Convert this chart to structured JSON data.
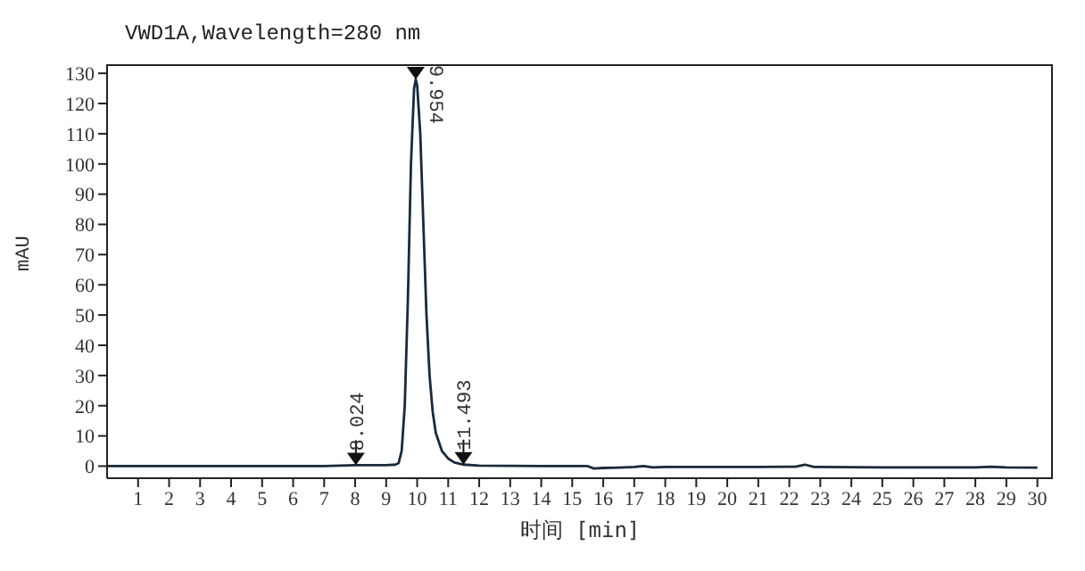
{
  "chart_data": {
    "type": "line",
    "title": "VWD1A,Wavelength=280 nm",
    "xlabel": "时间 [min]",
    "ylabel": "mAU",
    "x": [
      0,
      1,
      2,
      3,
      4,
      5,
      6,
      7,
      8,
      8.5,
      9,
      9.3,
      9.4,
      9.5,
      9.6,
      9.7,
      9.8,
      9.9,
      9.954,
      10,
      10.1,
      10.2,
      10.3,
      10.4,
      10.5,
      10.6,
      10.8,
      11,
      11.2,
      11.5,
      12,
      13,
      14,
      15,
      15.5,
      15.7,
      16,
      16.5,
      17,
      17.3,
      17.6,
      18,
      19,
      20,
      21,
      22,
      22.2,
      22.5,
      22.8,
      23,
      25,
      28,
      28.5,
      29,
      30
    ],
    "series": [
      {
        "color": "#1a2a3a",
        "values": [
          0,
          0,
          0,
          0,
          0,
          0,
          0,
          0,
          0.3,
          0.3,
          0.3,
          0.5,
          1,
          5,
          20,
          55,
          100,
          125,
          128,
          126,
          110,
          80,
          50,
          30,
          18,
          11,
          5,
          2.5,
          1.2,
          0.5,
          0.2,
          0.1,
          0,
          0,
          0,
          -0.8,
          -0.6,
          -0.5,
          -0.3,
          0,
          -0.4,
          -0.3,
          -0.3,
          -0.3,
          -0.3,
          -0.2,
          -0.2,
          0.5,
          -0.3,
          -0.3,
          -0.4,
          -0.4,
          -0.2,
          -0.4,
          -0.5
        ]
      }
    ],
    "xlim": [
      0,
      30.5
    ],
    "xticks": [
      1,
      2,
      3,
      4,
      5,
      6,
      7,
      8,
      9,
      10,
      11,
      12,
      13,
      14,
      15,
      16,
      17,
      18,
      19,
      20,
      21,
      22,
      23,
      24,
      25,
      26,
      27,
      28,
      29,
      30
    ],
    "ylim": [
      -4,
      133
    ],
    "yticks": [
      0,
      10,
      20,
      30,
      40,
      50,
      60,
      70,
      80,
      90,
      100,
      110,
      120,
      130
    ],
    "grid": false,
    "legend": false,
    "marker": "none",
    "line_style": "solid",
    "annotations": [
      {
        "text": "8.024",
        "x": 8.024,
        "y": 0.3
      },
      {
        "text": "9.954",
        "x": 9.954,
        "y": 128
      },
      {
        "text": "11.493",
        "x": 11.493,
        "y": 0.5
      }
    ]
  }
}
